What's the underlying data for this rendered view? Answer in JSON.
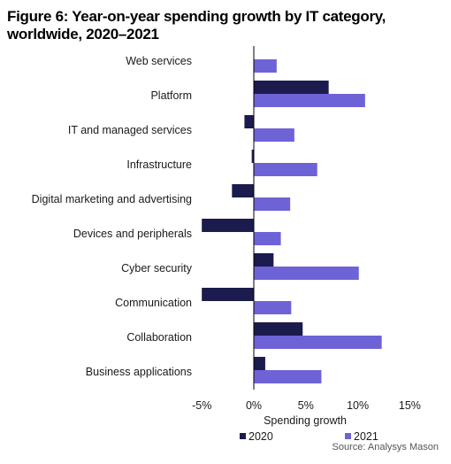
{
  "chart_data": {
    "type": "bar",
    "orientation": "horizontal",
    "title": "Figure 6: Year-on-year spending growth by IT category, worldwide, 2020–2021",
    "xlabel": "Spending growth",
    "ylabel": "",
    "categories": [
      "Web services",
      "Platform",
      "IT and managed services",
      "Infrastructure",
      "Digital marketing and advertising",
      "Devices and peripherals",
      "Cyber security",
      "Communication",
      "Collaboration",
      "Business applications"
    ],
    "series": [
      {
        "name": "2020",
        "color": "#1c1b4d",
        "values": [
          0.0,
          7.2,
          -0.9,
          -0.2,
          -2.1,
          -5.0,
          1.9,
          -5.0,
          4.7,
          1.1
        ]
      },
      {
        "name": "2021",
        "color": "#6e63d6",
        "values": [
          2.2,
          10.7,
          3.9,
          6.1,
          3.5,
          2.6,
          10.1,
          3.6,
          12.3,
          6.5
        ]
      }
    ],
    "xlim": [
      -5,
      15
    ],
    "xticks": [
      "-5%",
      "0%",
      "5%",
      "10%",
      "15%"
    ],
    "xtick_values": [
      -5,
      0,
      5,
      10,
      15
    ],
    "grid": false,
    "legend_position": "bottom"
  },
  "source": "Source: Analysys Mason"
}
